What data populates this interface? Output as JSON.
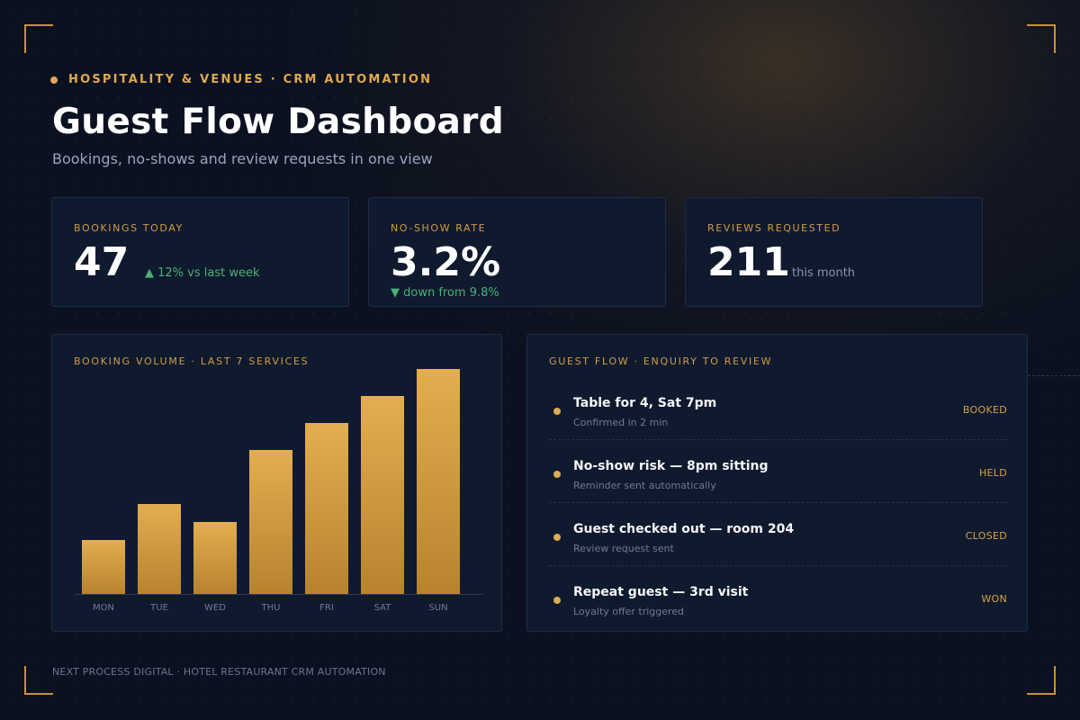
{
  "header": {
    "eyebrow": "HOSPITALITY & VENUES · CRM AUTOMATION",
    "title": "Guest Flow Dashboard",
    "subtitle": "Bookings, no-shows and review requests in one view"
  },
  "kpis": [
    {
      "label": "BOOKINGS TODAY",
      "value": "47",
      "note": "▲ 12% vs last week"
    },
    {
      "label": "NO-SHOW RATE",
      "value": "3.2%",
      "note": "▼ down from 9.8%"
    },
    {
      "label": "REVIEWS REQUESTED",
      "value": "211",
      "note": "this month"
    }
  ],
  "chart_title": "BOOKING VOLUME · LAST 7 SERVICES",
  "chart_data": {
    "type": "bar",
    "title": "BOOKING VOLUME · LAST 7 SERVICES",
    "categories": [
      "MON",
      "TUE",
      "WED",
      "THU",
      "FRI",
      "SAT",
      "SUN"
    ],
    "values": [
      60,
      100,
      80,
      160,
      190,
      220,
      250
    ],
    "ylim": [
      0,
      250
    ],
    "grid": false,
    "color": "#e0a94d"
  },
  "flow": {
    "title": "GUEST FLOW · ENQUIRY TO REVIEW",
    "items": [
      {
        "title": "Table for 4, Sat 7pm",
        "sub": "Confirmed in 2 min",
        "status": "BOOKED"
      },
      {
        "title": "No-show risk — 8pm sitting",
        "sub": "Reminder sent automatically",
        "status": "HELD"
      },
      {
        "title": "Guest checked out — room 204",
        "sub": "Review request sent",
        "status": "CLOSED"
      },
      {
        "title": "Repeat guest — 3rd visit",
        "sub": "Loyalty offer triggered",
        "status": "WON"
      }
    ]
  },
  "footer": "NEXT PROCESS DIGITAL · HOTEL RESTAURANT CRM AUTOMATION",
  "colors": {
    "accent": "#e0a94d",
    "background": "#0b1120",
    "card": "#0f1a2e",
    "positive": "#4caf78"
  }
}
